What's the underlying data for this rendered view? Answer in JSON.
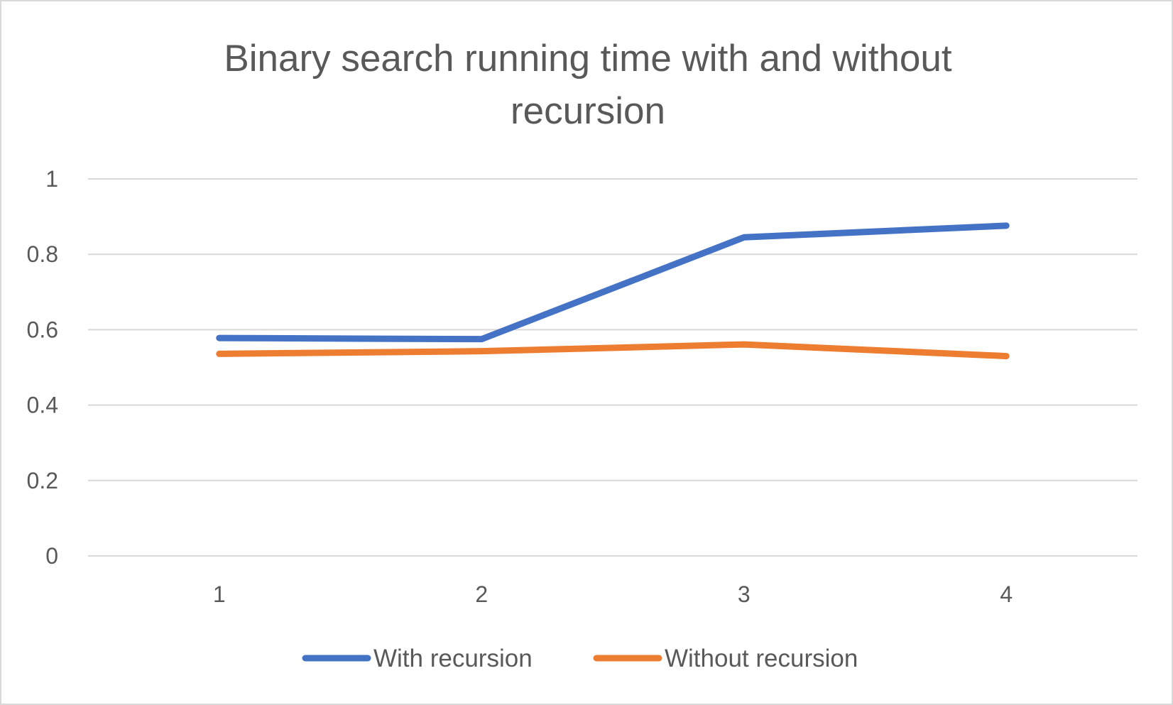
{
  "chart_data": {
    "type": "line",
    "title_lines": [
      "Binary search running time with and without",
      "recursion"
    ],
    "x": [
      "1",
      "2",
      "3",
      "4"
    ],
    "y_ticks": [
      "0",
      "0.2",
      "0.4",
      "0.6",
      "0.8",
      "1"
    ],
    "ylim": [
      0,
      1
    ],
    "grid": true,
    "legend_position": "bottom",
    "series": [
      {
        "name": "With recursion",
        "color": "#4472c4",
        "values": [
          0.578,
          0.575,
          0.845,
          0.876
        ]
      },
      {
        "name": "Without recursion",
        "color": "#ed7d31",
        "values": [
          0.536,
          0.543,
          0.561,
          0.53
        ]
      }
    ]
  }
}
